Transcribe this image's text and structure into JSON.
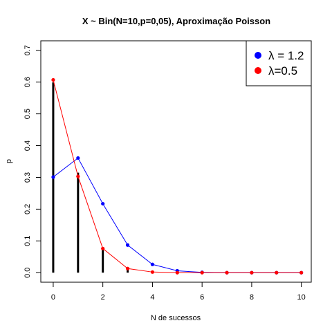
{
  "chart_data": {
    "type": "line",
    "title": "X ~ Bin(N=10,p=0,05), Aproximação Poisson",
    "xlabel": "N de sucessos",
    "ylabel": "p",
    "xlim": [
      -0.5,
      10.4
    ],
    "ylim": [
      -0.03,
      0.73
    ],
    "x_ticks": [
      "0",
      "2",
      "4",
      "6",
      "8",
      "10"
    ],
    "x_tick_values": [
      0,
      2,
      4,
      6,
      8,
      10
    ],
    "y_ticks": [
      "0.0",
      "0.1",
      "0.2",
      "0.3",
      "0.4",
      "0.5",
      "0.6",
      "0.7"
    ],
    "y_tick_values": [
      0,
      0.1,
      0.2,
      0.3,
      0.4,
      0.5,
      0.6,
      0.7
    ],
    "grid": false,
    "legend_position": "top-right",
    "binomial_pmf": {
      "style": "vertical lines",
      "color": "#000000",
      "x": [
        0,
        1,
        2,
        3,
        4,
        5,
        6,
        7,
        8,
        9,
        10
      ],
      "values": [
        0.599,
        0.315,
        0.075,
        0.01,
        0.001,
        0.0,
        0.0,
        0.0,
        0.0,
        0.0,
        0.0
      ]
    },
    "series": [
      {
        "name": "λ = 1.2",
        "color": "#0000ff",
        "x": [
          0,
          1,
          2,
          3,
          4,
          5,
          6,
          7,
          8,
          9,
          10
        ],
        "values": [
          0.301,
          0.361,
          0.217,
          0.087,
          0.026,
          0.006,
          0.001,
          0.0,
          0.0,
          0.0,
          0.0
        ]
      },
      {
        "name": "λ=0.5",
        "color": "#ff0000",
        "x": [
          0,
          1,
          2,
          3,
          4,
          5,
          6,
          7,
          8,
          9,
          10
        ],
        "values": [
          0.607,
          0.303,
          0.076,
          0.013,
          0.002,
          0.0,
          0.0,
          0.0,
          0.0,
          0.0,
          0.0
        ]
      }
    ]
  }
}
